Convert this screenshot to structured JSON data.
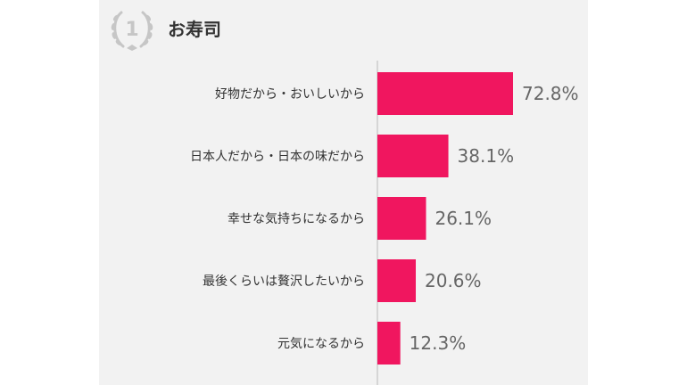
{
  "header": {
    "rank": "1",
    "title": "お寿司"
  },
  "colors": {
    "bar": "#f0165f",
    "axis": "#bbbbbb",
    "icon": "#c6c6c6"
  },
  "chart_data": {
    "type": "bar",
    "orientation": "horizontal",
    "categories": [
      "好物だから・おいしいから",
      "日本人だから・日本の味だから",
      "幸せな気持ちになるから",
      "最後くらいは贅沢したいから",
      "元気になるから"
    ],
    "values": [
      72.8,
      38.1,
      26.1,
      20.6,
      12.3
    ],
    "value_labels": [
      "72.8%",
      "38.1%",
      "26.1%",
      "20.6%",
      "12.3%"
    ],
    "xlim": [
      0,
      100
    ],
    "grid": false,
    "legend": "none"
  }
}
